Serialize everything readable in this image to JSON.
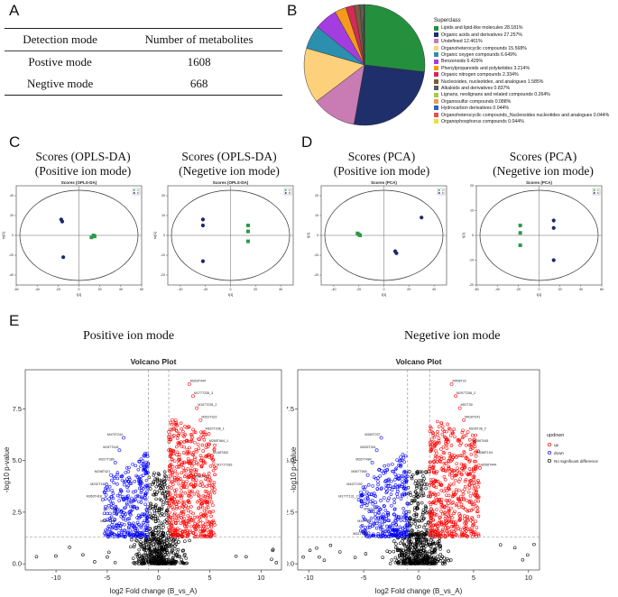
{
  "panels": {
    "a": "A",
    "b": "B",
    "c": "C",
    "d": "D",
    "e": "E"
  },
  "table": {
    "headers": [
      "Detection mode",
      "Number of metabolites"
    ],
    "rows": [
      [
        "Postive mode",
        "1608"
      ],
      [
        "Negtive mode",
        "668"
      ]
    ]
  },
  "pca_titles": {
    "c1": [
      "Scores (OPLS-DA)",
      "(Positive ion mode)"
    ],
    "c2": [
      "Scores (OPLS-DA)",
      "(Negetive ion mode)"
    ],
    "d1": [
      "Scores (PCA)",
      "(Positive ion mode)"
    ],
    "d2": [
      "Scores (PCA)",
      "(Negetive ion mode)"
    ]
  },
  "volcano_titles": {
    "left": "Positive ion mode",
    "right": "Negetive ion mode"
  },
  "colors": {
    "green": "#2a9b48",
    "navy": "#1a2a6a",
    "up": "#ff0000",
    "down": "#0000ff",
    "ns": "#000000"
  },
  "chart_data": [
    {
      "type": "pie",
      "title": "Superclass",
      "slices": [
        {
          "label": "Lipids and lipid-like molecules 28.181%",
          "value": 28.181,
          "color": "#24903e"
        },
        {
          "label": "Organic acids and derivatives 27.257%",
          "value": 27.257,
          "color": "#1f2f6b"
        },
        {
          "label": "Undefined 12.461%",
          "value": 12.461,
          "color": "#c97bb3"
        },
        {
          "label": "Organoheterocyclic compounds 15.568%",
          "value": 15.568,
          "color": "#fdd17b"
        },
        {
          "label": "Organic oxygen compounds 6.649%",
          "value": 6.649,
          "color": "#2b8fb0"
        },
        {
          "label": "Benzenoids 6.429%",
          "value": 6.429,
          "color": "#a33de0"
        },
        {
          "label": "Phenylpropanoids and polyketides 3.214%",
          "value": 3.214,
          "color": "#f59a1c"
        },
        {
          "label": "Organic nitrogen compounds 2.334%",
          "value": 2.334,
          "color": "#d42a56"
        },
        {
          "label": "Nucleosides, nucleotides, and analogues 1.585%",
          "value": 1.585,
          "color": "#7a5c3c"
        },
        {
          "label": "Alkaloids and derivatives 0.837%",
          "value": 0.837,
          "color": "#5a5a5a"
        },
        {
          "label": "Lignans, neolignans and related compounds 0.264%",
          "value": 0.264,
          "color": "#a9c74a"
        },
        {
          "label": "Organosulfur compounds 0.088%",
          "value": 0.088,
          "color": "#e0a050"
        },
        {
          "label": "Hydrocarbon derivatives 0.044%",
          "value": 0.044,
          "color": "#3060c0"
        },
        {
          "label": "Organoheterocyclic compounds_Nucleosides nucleotides and analogues 0.044%",
          "value": 0.044,
          "color": "#e25050"
        },
        {
          "label": "Organophosphorus compounds 0.044%",
          "value": 0.044,
          "color": "#e8e040"
        }
      ]
    },
    {
      "type": "scatter",
      "title": "Scores (OPLS-DA)",
      "xlabel": "t[1]",
      "ylabel": "to[1]",
      "xlim": [
        -60,
        60
      ],
      "ylim": [
        -50,
        50
      ],
      "xticks": [
        -60,
        -40,
        -20,
        0,
        20,
        40,
        60
      ],
      "yticks": [
        -40,
        -20,
        0,
        20,
        40
      ],
      "series": [
        {
          "name": "A",
          "color": "#2a9b48",
          "marker": "square",
          "points": [
            [
              15,
              -1
            ],
            [
              12,
              -2
            ],
            [
              14,
              0
            ]
          ]
        },
        {
          "name": "B",
          "color": "#1a2a6a",
          "marker": "circle",
          "points": [
            [
              -17,
              16
            ],
            [
              -16,
              14
            ],
            [
              -15,
              -22
            ]
          ]
        }
      ]
    },
    {
      "type": "scatter",
      "title": "Scores (OPLS-DA)",
      "xlabel": "t[1]",
      "ylabel": "to[1]",
      "xlim": [
        -50,
        50
      ],
      "ylim": [
        -25,
        25
      ],
      "xticks": [
        -40,
        -20,
        0,
        20,
        40
      ],
      "yticks": [
        -20,
        -10,
        0,
        10,
        20
      ],
      "series": [
        {
          "name": "A",
          "color": "#2a9b48",
          "marker": "square",
          "points": [
            [
              14,
              5
            ],
            [
              14,
              2
            ],
            [
              14,
              -3
            ]
          ]
        },
        {
          "name": "B",
          "color": "#1a2a6a",
          "marker": "circle",
          "points": [
            [
              -22,
              8
            ],
            [
              -22,
              5
            ],
            [
              -22,
              -13
            ]
          ]
        }
      ]
    },
    {
      "type": "scatter",
      "title": "Scores (PCA)",
      "xlabel": "t[1]",
      "ylabel": "t[2]",
      "xlim": [
        -50,
        50
      ],
      "ylim": [
        -25,
        25
      ],
      "xticks": [
        -40,
        -20,
        0,
        20,
        40
      ],
      "yticks": [
        -20,
        -10,
        0,
        10,
        20
      ],
      "series": [
        {
          "name": "A",
          "color": "#2a9b48",
          "marker": "square",
          "points": [
            [
              -21,
              1
            ],
            [
              -20,
              0.5
            ],
            [
              -19,
              0
            ]
          ]
        },
        {
          "name": "B",
          "color": "#1a2a6a",
          "marker": "circle",
          "points": [
            [
              30,
              9
            ],
            [
              9,
              -8
            ],
            [
              10,
              -9
            ]
          ]
        }
      ]
    },
    {
      "type": "scatter",
      "title": "Scores (PCA)",
      "xlabel": "t[1]",
      "ylabel": "t[2]",
      "xlim": [
        -60,
        60
      ],
      "ylim": [
        -20,
        20
      ],
      "xticks": [
        -60,
        -40,
        -20,
        0,
        20,
        40,
        60
      ],
      "yticks": [
        -20,
        -10,
        0,
        10,
        20
      ],
      "series": [
        {
          "name": "A",
          "color": "#2a9b48",
          "marker": "square",
          "points": [
            [
              -18,
              4
            ],
            [
              -18,
              1
            ],
            [
              -18,
              -4
            ]
          ]
        },
        {
          "name": "B",
          "color": "#1a2a6a",
          "marker": "circle",
          "points": [
            [
              14,
              6
            ],
            [
              14,
              3
            ],
            [
              14,
              -10
            ]
          ]
        }
      ]
    },
    {
      "type": "volcano",
      "title": "Volcano Plot",
      "xlabel": "log2 Fold change (B_vs_A)",
      "ylabel": "-log10 p-value",
      "xlim": [
        -13,
        12
      ],
      "ylim": [
        -0.3,
        9.4
      ],
      "xticks": [
        -10,
        -5,
        0,
        5,
        10
      ],
      "yticks": [
        0.0,
        2.5,
        5.0,
        7.5
      ],
      "thresholds": {
        "fc": [
          -1,
          1
        ],
        "p": 1.3
      },
      "labels_up": [
        "M303T444",
        "M177T235_3",
        "M107T235_2",
        "M261T322",
        "M167T236_1",
        "M265T664_1",
        "M148T452",
        "M171T183",
        "M181T451"
      ],
      "labels_down": [
        "M470T244",
        "M157T418",
        "M317T380",
        "M248T421",
        "M232T140",
        "M363T418",
        "M271T121",
        "M254T332"
      ]
    },
    {
      "type": "volcano",
      "title": "Volcano Plot",
      "xlabel": "log2 Fold change (B_vs_A)",
      "ylabel": "-log10 p-value",
      "xlim": [
        -11,
        11
      ],
      "ylim": [
        -0.3,
        9.4
      ],
      "xticks": [
        -10,
        -5,
        0,
        5,
        10
      ],
      "yticks": [
        0.0,
        2.5,
        5.0,
        7.5
      ],
      "thresholds": {
        "fc": [
          -1,
          1
        ],
        "p": 1.3
      },
      "labels_up": [
        "M458T22",
        "M297T256_2",
        "M57T30",
        "M416T241",
        "M106T36_2",
        "M266T445",
        "M286T194",
        "M266T444"
      ],
      "labels_down": [
        "M269T227",
        "M325T261",
        "M267T484",
        "M367T565",
        "M422T292",
        "M177T131_2",
        "M96T132",
        "M347T161",
        "M321T360"
      ],
      "legend": {
        "title": "updown",
        "items": [
          "up",
          "down",
          "No significant difference"
        ]
      }
    }
  ]
}
